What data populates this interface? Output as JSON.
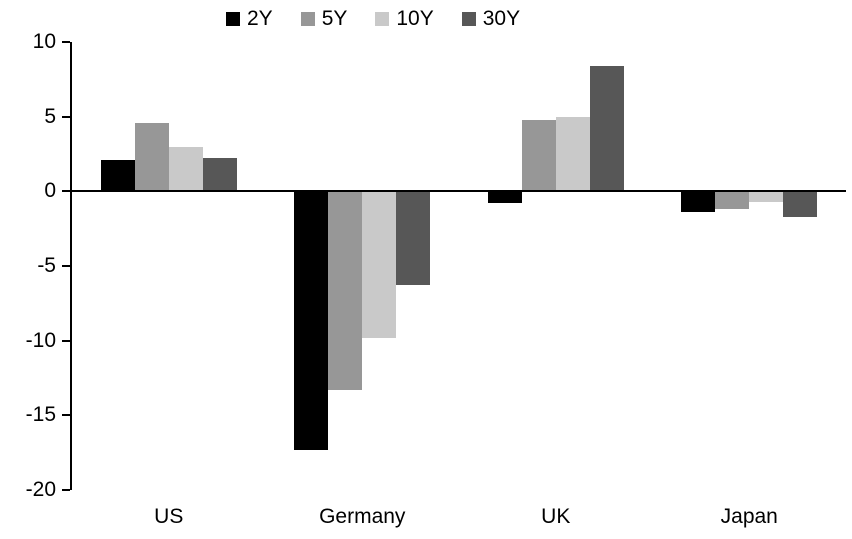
{
  "chart_data": {
    "type": "bar",
    "title": "",
    "xlabel": "",
    "ylabel": "",
    "categories": [
      "US",
      "Germany",
      "UK",
      "Japan"
    ],
    "series": [
      {
        "name": "2Y",
        "color": "#000000",
        "values": [
          2.1,
          -17.3,
          -0.8,
          -1.4
        ]
      },
      {
        "name": "5Y",
        "color": "#979797",
        "values": [
          4.6,
          -13.3,
          4.8,
          -1.2
        ]
      },
      {
        "name": "10Y",
        "color": "#c9c9c9",
        "values": [
          3.0,
          -9.8,
          5.0,
          -0.7
        ]
      },
      {
        "name": "30Y",
        "color": "#575757",
        "values": [
          2.2,
          -6.3,
          8.4,
          -1.7
        ]
      }
    ],
    "ylim": [
      -20,
      10
    ],
    "yticks": [
      10,
      5,
      0,
      -5,
      -10,
      -15,
      -20
    ],
    "grid": false,
    "legend_position": "top",
    "axis_color": "#000000",
    "background_color": "#ffffff"
  }
}
